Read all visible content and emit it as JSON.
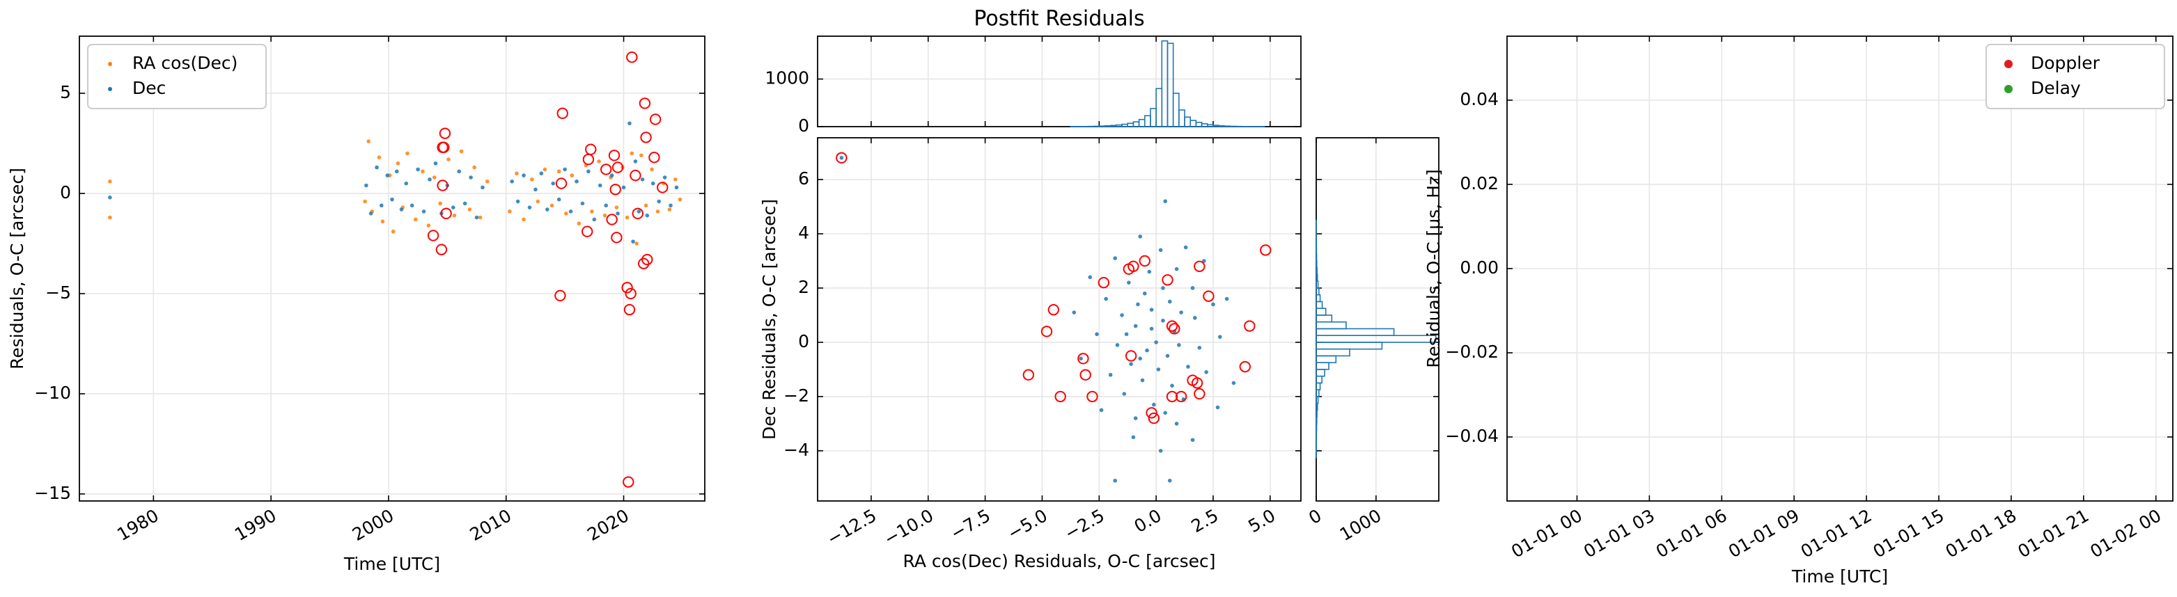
{
  "chart_data": [
    {
      "type": "scatter",
      "xlabel": "Time [UTC]",
      "ylabel": "Residuals, O-C [arcsec]",
      "xlim": [
        1973.7,
        2026.9
      ],
      "ylim": [
        -15.35,
        7.85
      ],
      "xticks": [
        1980,
        1990,
        2000,
        2010,
        2020
      ],
      "yticks": [
        {
          "value": -15,
          "label": "−15"
        },
        {
          "value": -10,
          "label": "−10"
        },
        {
          "value": -5,
          "label": "−5"
        },
        0,
        5
      ],
      "grid": true,
      "legend": "upper left",
      "series": [
        {
          "name": "RA cos(Dec)",
          "color": "#ff7f0e",
          "x": [
            1976.3,
            1976.3,
            1998,
            1998.3,
            1998.6,
            1999.2,
            1999.5,
            2000.1,
            2000.4,
            2000.8,
            2001.2,
            2001.6,
            2002.3,
            2002.9,
            2003.4,
            2003.9,
            2004.4,
            2005.1,
            2005.6,
            2006.2,
            2006.9,
            2007.3,
            2007.8,
            2008.4,
            2010.3,
            2010.9,
            2011.5,
            2012.2,
            2012.7,
            2013.3,
            2013.9,
            2014.5,
            2015.1,
            2015.6,
            2016.2,
            2016.8,
            2017.3,
            2017.9,
            2018.4,
            2018.9,
            2019.4,
            2019.9,
            2020.3,
            2020.7,
            2021.1,
            2021.5,
            2021.9,
            2022.4,
            2022.9,
            2023.4,
            2023.9,
            2024.4,
            2024.8
          ],
          "values": [
            0.6,
            -1.2,
            -0.4,
            2.6,
            -0.9,
            1.8,
            -1.4,
            0.9,
            -1.9,
            1.5,
            -0.7,
            2.0,
            -1.3,
            1.1,
            -1.6,
            0.8,
            -0.5,
            1.7,
            -1.1,
            2.1,
            -0.8,
            1.3,
            -1.2,
            0.6,
            -0.9,
            1.0,
            -1.3,
            0.7,
            -0.4,
            1.2,
            -0.6,
            1.1,
            -1.0,
            0.9,
            -1.5,
            1.4,
            -0.9,
            1.6,
            -1.1,
            0.8,
            -0.7,
            1.3,
            -1.2,
            2.0,
            -2.5,
            1.9,
            -0.6,
            1.2,
            -0.9,
            0.5,
            -0.8,
            0.7,
            -0.3
          ]
        },
        {
          "name": "Dec",
          "color": "#1f77b4",
          "x": [
            1976.3,
            1998.1,
            1998.5,
            1999.0,
            1999.4,
            1999.9,
            2000.3,
            2000.7,
            2001.1,
            2001.5,
            2002.0,
            2002.5,
            2003.0,
            2003.5,
            2004.0,
            2004.5,
            2005.0,
            2005.5,
            2006.0,
            2006.5,
            2007.0,
            2007.5,
            2008.0,
            2010.5,
            2011.0,
            2011.5,
            2012.0,
            2012.5,
            2013.0,
            2013.5,
            2014.0,
            2014.5,
            2015.0,
            2015.5,
            2016.0,
            2016.5,
            2017.0,
            2017.5,
            2018.0,
            2018.5,
            2019.0,
            2019.5,
            2020.0,
            2020.5,
            2020.8,
            2021.0,
            2021.3,
            2021.6,
            2022.0,
            2022.5,
            2023.0,
            2023.5,
            2024.0,
            2024.5
          ],
          "values": [
            -0.2,
            0.4,
            -1.0,
            1.3,
            -0.6,
            0.9,
            -0.3,
            1.1,
            -0.8,
            0.5,
            -0.6,
            1.2,
            -0.9,
            0.7,
            1.5,
            -1.0,
            0.4,
            -0.7,
            1.1,
            -0.5,
            0.8,
            -1.2,
            0.3,
            0.6,
            -0.4,
            0.9,
            -0.7,
            0.2,
            1.0,
            -0.8,
            0.5,
            -0.3,
            1.2,
            -0.9,
            0.6,
            -0.5,
            1.1,
            -1.3,
            0.4,
            -0.6,
            0.9,
            -1.0,
            0.3,
            3.5,
            -2.4,
            1.6,
            -0.9,
            0.7,
            -1.1,
            0.5,
            -0.4,
            0.8,
            -0.6,
            0.3
          ]
        }
      ],
      "highlighted": {
        "color": "#ff0000",
        "x": [
          2003.8,
          2004.5,
          2004.6,
          2004.6,
          2004.7,
          2004.8,
          2004.9,
          2014.6,
          2014.7,
          2014.8,
          2016.9,
          2017.0,
          2017.2,
          2018.5,
          2019.0,
          2019.2,
          2019.3,
          2019.4,
          2019.5,
          2020.3,
          2020.4,
          2020.5,
          2020.6,
          2020.7,
          2021.0,
          2021.2,
          2021.7,
          2021.8,
          2021.9,
          2022.0,
          2022.6,
          2022.7,
          2023.3
        ],
        "values": [
          -2.1,
          -2.8,
          0.4,
          2.3,
          2.3,
          3.0,
          -1.0,
          -5.1,
          0.5,
          4.0,
          -1.9,
          1.7,
          2.2,
          1.2,
          -1.3,
          1.9,
          0.2,
          -2.2,
          1.3,
          -4.7,
          -14.4,
          -5.8,
          -5.0,
          6.8,
          0.9,
          -1.0,
          -3.5,
          4.5,
          2.8,
          -3.3,
          1.8,
          3.7,
          0.3
        ]
      }
    },
    {
      "type": "histogram",
      "title": "Postfit Residuals",
      "color": "#1f77b4",
      "xlim": [
        -14.85,
        6.35
      ],
      "ylim": [
        0,
        1900
      ],
      "yticks": [
        0,
        1000
      ],
      "grid": true,
      "bins": [
        -4,
        -3.75,
        -3.5,
        -3.25,
        -3,
        -2.75,
        -2.5,
        -2.25,
        -2,
        -1.75,
        -1.5,
        -1.25,
        -1,
        -0.75,
        -0.5,
        -0.25,
        0,
        0.25,
        0.5,
        0.75,
        1,
        1.25,
        1.5,
        1.75,
        2,
        2.25,
        2.5,
        2.75,
        3,
        3.25,
        3.5,
        3.75,
        4,
        4.25,
        4.5,
        4.75,
        5
      ],
      "values": [
        0,
        1,
        2,
        3,
        5,
        8,
        12,
        18,
        25,
        35,
        50,
        70,
        100,
        150,
        230,
        380,
        800,
        1800,
        1750,
        700,
        350,
        200,
        130,
        90,
        60,
        40,
        28,
        18,
        12,
        8,
        5,
        3,
        2,
        1,
        1,
        0
      ]
    },
    {
      "type": "scatter",
      "xlabel": "RA cos(Dec) Residuals, O-C [arcsec]",
      "ylabel": "Dec Residuals, O-C [arcsec]",
      "xlim": [
        -14.85,
        6.35
      ],
      "ylim": [
        -5.85,
        7.54
      ],
      "xticks": [
        {
          "value": -15,
          "label": "−15.0"
        },
        {
          "value": -12.5,
          "label": "−12.5"
        },
        {
          "value": -10,
          "label": "−10.0"
        },
        {
          "value": -7.5,
          "label": "−7.5"
        },
        {
          "value": -5,
          "label": "−5.0"
        },
        {
          "value": -2.5,
          "label": "−2.5"
        },
        {
          "value": 0,
          "label": "0.0"
        },
        {
          "value": 2.5,
          "label": "2.5"
        },
        {
          "value": 5,
          "label": "5.0"
        }
      ],
      "yticks": [
        {
          "value": -4,
          "label": "−4"
        },
        {
          "value": -2,
          "label": "−2"
        },
        0,
        2,
        4,
        6
      ],
      "grid": true,
      "series": [
        {
          "color": "#1f77b4",
          "x": [
            -13.8,
            0.4,
            -0.7,
            1.3,
            -2.9,
            -1.8,
            2.1,
            0.2,
            -0.3,
            0.9,
            -1.2,
            1.6,
            -2.2,
            2.5,
            -0.5,
            0.6,
            -1.5,
            1.1,
            -0.2,
            0.3,
            -0.9,
            0.8,
            -2.6,
            2.8,
            -1.7,
            1.9,
            0.0,
            -0.4,
            0.5,
            -1.1,
            1.4,
            -2.0,
            2.2,
            -0.6,
            0.7,
            -1.4,
            1.2,
            -0.1,
            0.4,
            -0.9,
            0.9,
            -2.4,
            2.7,
            -1.0,
            1.6,
            0.2,
            -1.8,
            0.6,
            3.4,
            -3.3,
            3.1,
            -3.6,
            0.1,
            -0.2,
            0.3,
            -0.7,
            1.0,
            -1.3,
            1.7,
            -0.8
          ],
          "values": [
            6.8,
            5.2,
            3.9,
            3.5,
            2.4,
            3.1,
            3.0,
            3.4,
            2.6,
            2.7,
            2.2,
            2.0,
            1.6,
            1.4,
            1.8,
            1.5,
            1.0,
            1.1,
            1.2,
            0.8,
            0.6,
            0.4,
            0.3,
            0.2,
            -0.1,
            -0.2,
            0.0,
            -0.3,
            -0.5,
            -0.8,
            -0.9,
            -1.2,
            -1.1,
            -1.4,
            -1.6,
            -1.9,
            -2.1,
            -2.3,
            -2.6,
            -2.8,
            -3.0,
            -2.5,
            -2.4,
            -3.5,
            -3.6,
            -4.0,
            -5.1,
            -5.1,
            -1.5,
            -0.6,
            1.6,
            1.1,
            -1.0,
            0.5,
            2.0,
            -0.6,
            -0.1,
            0.3,
            0.9,
            1.4
          ]
        }
      ],
      "highlighted": {
        "color": "#ff0000",
        "x": [
          -13.8,
          4.8,
          -2.3,
          -4.5,
          -1.2,
          -1.0,
          -0.5,
          0.5,
          1.9,
          2.3,
          -4.8,
          -5.6,
          -3.2,
          -3.1,
          -4.2,
          -2.8,
          -0.2,
          -0.1,
          0.7,
          1.1,
          1.8,
          1.9,
          1.6,
          4.1,
          3.9,
          0.7,
          0.8,
          -1.1
        ],
        "values": [
          6.8,
          3.4,
          2.2,
          1.2,
          2.7,
          2.8,
          3.0,
          2.3,
          2.8,
          1.7,
          0.4,
          -1.2,
          -0.6,
          -1.2,
          -2.0,
          -2.0,
          -2.6,
          -2.8,
          -2.0,
          -2.0,
          -1.5,
          -1.9,
          -1.4,
          0.6,
          -0.9,
          0.6,
          0.5,
          -0.5
        ]
      }
    },
    {
      "type": "histogram",
      "orientation": "horizontal",
      "color": "#1f77b4",
      "xlim": [
        0,
        2050
      ],
      "xticks": [
        0,
        1000
      ],
      "ylim": [
        -5.85,
        7.54
      ],
      "grid": true,
      "bins": [
        -4.25,
        -4,
        -3.75,
        -3.5,
        -3.25,
        -3,
        -2.75,
        -2.5,
        -2.25,
        -2,
        -1.75,
        -1.5,
        -1.25,
        -1,
        -0.75,
        -0.5,
        -0.25,
        0,
        0.25,
        0.5,
        0.75,
        1,
        1.25,
        1.5,
        1.75,
        2,
        2.25,
        2.5,
        2.75,
        3,
        3.25,
        3.5,
        3.75,
        4,
        4.25,
        4.5,
        4.75
      ],
      "values": [
        1,
        2,
        3,
        4,
        6,
        9,
        13,
        20,
        30,
        45,
        65,
        95,
        140,
        210,
        330,
        560,
        1100,
        2000,
        1300,
        500,
        260,
        160,
        100,
        65,
        45,
        30,
        20,
        14,
        9,
        6,
        4,
        3,
        2,
        1,
        1,
        0
      ]
    },
    {
      "type": "scatter",
      "xlabel": "Time [UTC]",
      "ylabel": "Residuals, O-C [μs, Hz]",
      "xlim": [
        -2.9,
        24.7
      ],
      "ylim": [
        -0.0552,
        0.0552
      ],
      "xticks": [
        {
          "value": 0,
          "label": "01-01 00"
        },
        {
          "value": 3,
          "label": "01-01 03"
        },
        {
          "value": 6,
          "label": "01-01 06"
        },
        {
          "value": 9,
          "label": "01-01 09"
        },
        {
          "value": 12,
          "label": "01-01 12"
        },
        {
          "value": 15,
          "label": "01-01 15"
        },
        {
          "value": 18,
          "label": "01-01 18"
        },
        {
          "value": 21,
          "label": "01-01 21"
        },
        {
          "value": 24,
          "label": "01-02 00"
        }
      ],
      "yticks": [
        {
          "value": -0.04,
          "label": "−0.04"
        },
        {
          "value": -0.02,
          "label": "−0.02"
        },
        {
          "value": 0,
          "label": "0.00"
        },
        {
          "value": 0.02,
          "label": "0.02"
        },
        {
          "value": 0.04,
          "label": "0.04"
        }
      ],
      "grid": true,
      "legend": "upper right",
      "series": [
        {
          "name": "Doppler",
          "color": "#e41a1c"
        },
        {
          "name": "Delay",
          "color": "#2ca02c"
        }
      ]
    }
  ]
}
